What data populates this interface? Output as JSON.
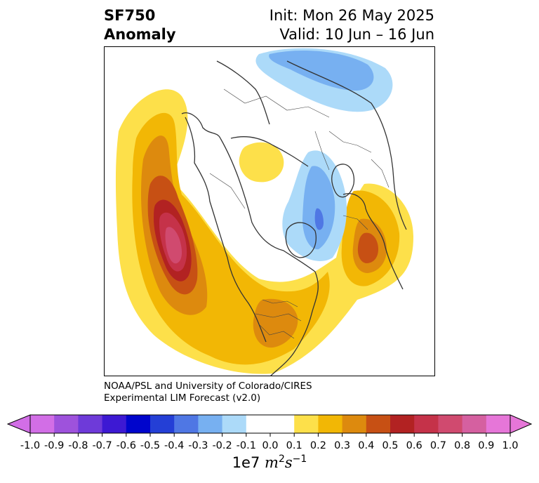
{
  "title": {
    "variable": "SF750",
    "subtitle": "Anomaly",
    "init": "Init: Mon 26 May 2025",
    "valid": "Valid: 10 Jun – 16 Jun"
  },
  "credit": {
    "line1": "NOAA/PSL and University of Colorado/CIRES",
    "line2": "Experimental LIM Forecast (v2.0)"
  },
  "colorbar": {
    "ticks": [
      "-1.0",
      "-0.9",
      "-0.8",
      "-0.7",
      "-0.6",
      "-0.5",
      "-0.4",
      "-0.3",
      "-0.2",
      "-0.1",
      "0.0",
      "0.1",
      "0.2",
      "0.3",
      "0.4",
      "0.5",
      "0.6",
      "0.7",
      "0.8",
      "0.9",
      "1.0"
    ],
    "colors": [
      "#d26ee6",
      "#9e52dc",
      "#6e3ad9",
      "#3d19d3",
      "#0005cc",
      "#243fd6",
      "#4f77e4",
      "#77b0f1",
      "#acdaf9",
      "#ffffff",
      "#ffffff",
      "#fde04a",
      "#f2b705",
      "#dd8a0e",
      "#c75014",
      "#b22222",
      "#c53249",
      "#d04a6f",
      "#d560a0",
      "#e676d8"
    ],
    "scale_label_prefix": "1e7",
    "units_var": "m",
    "units_exp_1": "2",
    "units_mid": "s",
    "units_exp_2": "−1"
  },
  "map": {
    "projection": "north-polar-stereographic",
    "anomaly_features": [
      {
        "region": "Northeast Pacific",
        "sign": "positive",
        "peak": 0.8
      },
      {
        "region": "Eastern United States",
        "sign": "positive",
        "peak": 0.4
      },
      {
        "region": "Western Europe / Atlantic",
        "sign": "positive",
        "peak": 0.4
      },
      {
        "region": "Western Siberia",
        "sign": "positive",
        "peak": 0.1
      },
      {
        "region": "Central Asia",
        "sign": "negative",
        "peak": -0.4
      },
      {
        "region": "Northeast Asia",
        "sign": "negative",
        "peak": -0.3
      }
    ]
  }
}
